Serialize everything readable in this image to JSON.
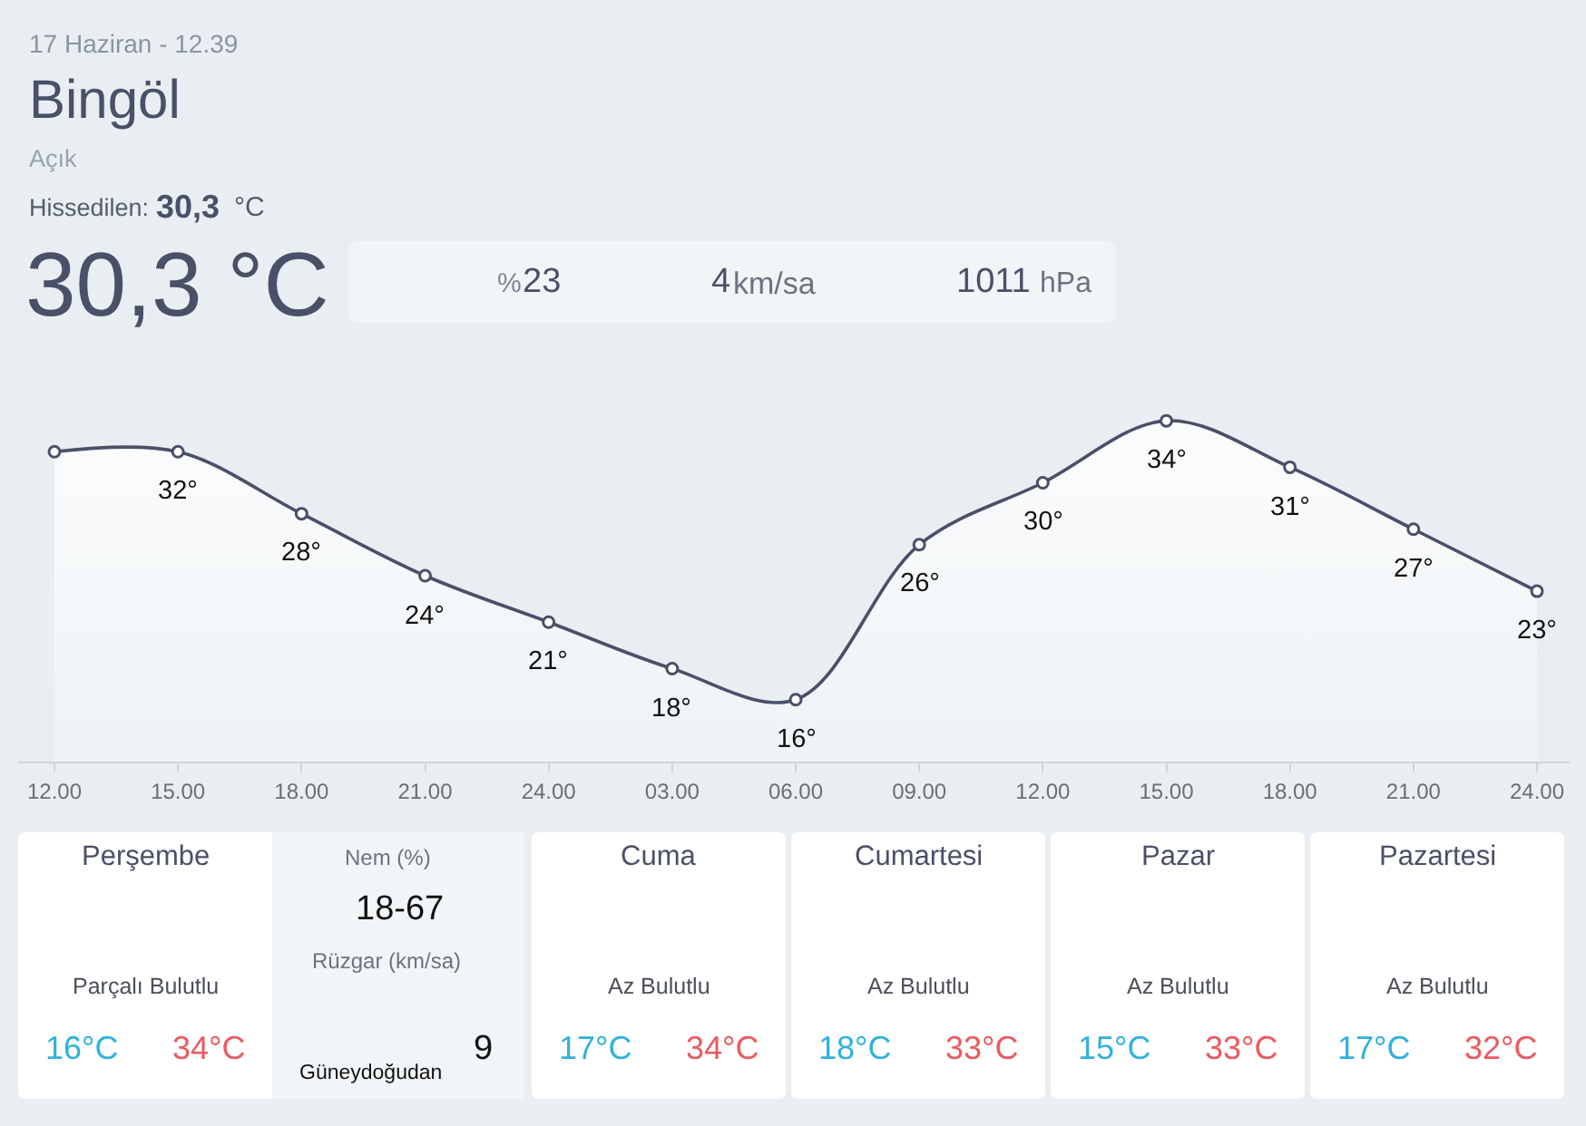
{
  "chart_data": [
    {
      "type": "other",
      "annotations": [
        "17 Haziran - 12.39",
        "Bingöl",
        "Açık",
        "Hissedilen:",
        "30,3",
        "°C",
        "30,3 °C",
        "%",
        "23",
        "4",
        "km/sa",
        "1011",
        "hPa"
      ]
    },
    {
      "type": "area",
      "categories": [
        "12.00",
        "15.00",
        "18.00",
        "21.00",
        "24.00",
        "03.00",
        "06.00",
        "09.00",
        "12.00",
        "15.00",
        "18.00",
        "21.00",
        "24.00"
      ],
      "values": [
        32,
        32,
        28,
        24,
        21,
        18,
        16,
        26,
        30,
        34,
        31,
        27,
        23
      ],
      "value_labels": [
        null,
        "32°",
        "28°",
        "24°",
        "21°",
        "18°",
        "16°",
        "26°",
        "30°",
        "34°",
        "31°",
        "27°",
        "23°"
      ],
      "color": "#4a5068",
      "marker": "circle"
    },
    {
      "type": "other",
      "annotations": [
        "Perşembe",
        "Parçalı Bulutlu",
        "16°C",
        "34°C",
        "Nem (%)",
        "18-67",
        "Rüzgar (km/sa)",
        "Güneydoğudan",
        "9",
        "Cuma",
        "Az Bulutlu",
        "17°C",
        "34°C",
        "Cumartesi",
        "Az Bulutlu",
        "18°C",
        "33°C",
        "Pazar",
        "Az Bulutlu",
        "15°C",
        "33°C",
        "Pazartesi",
        "Az Bulutlu",
        "17°C",
        "32°C"
      ]
    }
  ]
}
